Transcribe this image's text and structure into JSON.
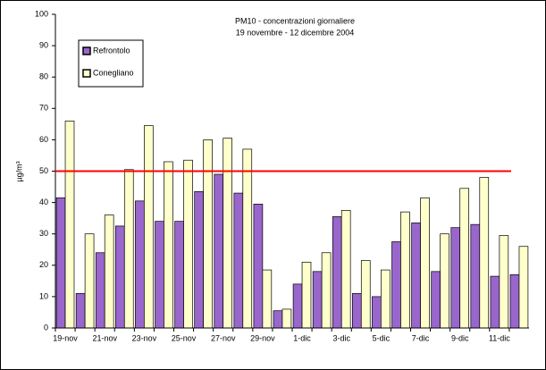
{
  "chart_data": {
    "type": "bar",
    "title": "PM10 - concentrazioni giornaliere",
    "subtitle": "19 novembre - 12 dicembre 2004",
    "y_label": "µg/m³",
    "categories": [
      "19-nov",
      null,
      "21-nov",
      null,
      "23-nov",
      null,
      "25-nov",
      null,
      "27-nov",
      null,
      "29-nov",
      null,
      "1-dic",
      null,
      "3-dic",
      null,
      "5-dic",
      null,
      "7-dic",
      null,
      "9-dic",
      null,
      "11-dic",
      null
    ],
    "series": [
      {
        "name": "Refrontolo",
        "color": "#9966cc",
        "values": [
          41.5,
          11,
          24,
          32.5,
          40.5,
          34,
          34,
          43.5,
          49,
          43,
          39.5,
          5.5,
          14,
          18,
          35.5,
          11,
          10,
          27.5,
          33.5,
          18,
          32,
          33,
          16.5,
          17
        ]
      },
      {
        "name": "Conegliano",
        "color": "#ffffcc",
        "values": [
          66,
          30,
          36,
          50.5,
          64.5,
          53,
          53.5,
          60,
          60.5,
          57,
          18.5,
          6,
          21,
          24,
          37.5,
          21.5,
          18.5,
          37,
          41.5,
          30,
          44.5,
          48,
          29.5,
          26
        ]
      }
    ],
    "limit": 50,
    "limit_color": "#ff0000",
    "ylim": [
      0,
      100
    ],
    "yticks": [
      0,
      10,
      20,
      30,
      40,
      50,
      60,
      70,
      80,
      90,
      100
    ],
    "legend": "upper-left"
  }
}
